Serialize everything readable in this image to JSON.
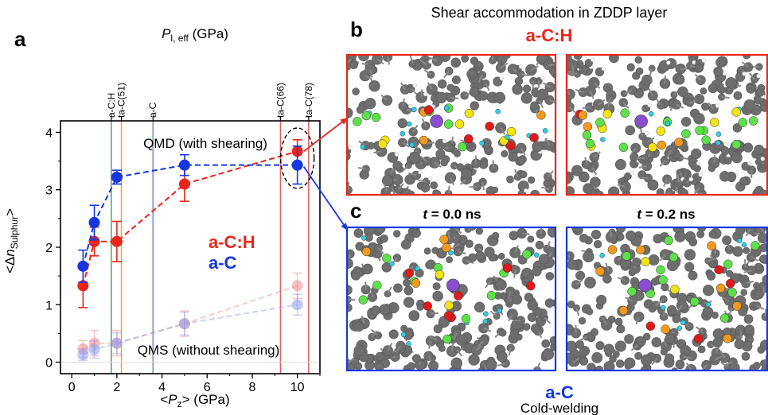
{
  "panels": {
    "a": "a",
    "b": "b",
    "c": "c"
  },
  "chart_data": {
    "type": "scatter",
    "xlabel": "<Pz> (GPa)",
    "xlabel_parts": {
      "pre": "<",
      "sym": "P",
      "sub": "z",
      "post": "> (GPa)"
    },
    "ylabel_parts": {
      "pre": "<Δ",
      "sym": "n",
      "sub": "Sulphur",
      "post": ">"
    },
    "top_axis_label": {
      "sym": "P",
      "sub": "l, eff",
      "post": " (GPa)"
    },
    "xlim": [
      -0.5,
      11
    ],
    "ylim": [
      -0.2,
      4.2
    ],
    "xticks": [
      "0",
      "2",
      "4",
      "6",
      "8",
      "10"
    ],
    "yticks": [
      "0",
      "1",
      "2",
      "3",
      "4"
    ],
    "top_markers": [
      {
        "label": "a-C:H",
        "x": 1.75,
        "color": "#5a9a68"
      },
      {
        "label": "ta-C(51)",
        "x": 2.2,
        "color": "#f0a030"
      },
      {
        "label": "a-C",
        "x": 3.6,
        "color": "#6f8fd0"
      },
      {
        "label": "ta-C(66)",
        "x": 9.25,
        "color": "#e06060"
      },
      {
        "label": "ta-C(78)",
        "x": 10.5,
        "color": "#e06060"
      }
    ],
    "series": [
      {
        "name": "a-C:H",
        "group": "QMD (with shearing)",
        "color": "#e8261c",
        "faded": false,
        "x": [
          0.5,
          1.0,
          2.0,
          5.0,
          10.0
        ],
        "y": [
          1.33,
          2.1,
          2.1,
          3.1,
          3.67
        ],
        "err": [
          0.38,
          0.25,
          0.35,
          0.3,
          0.2
        ]
      },
      {
        "name": "a-C",
        "group": "QMD (with shearing)",
        "color": "#1637e0",
        "faded": false,
        "x": [
          0.5,
          1.0,
          2.0,
          5.0,
          10.0
        ],
        "y": [
          1.67,
          2.43,
          3.22,
          3.43,
          3.43
        ],
        "err": [
          0.28,
          0.3,
          0.12,
          0.18,
          0.33
        ]
      },
      {
        "name": "a-C:H",
        "group": "QMS (without shearing)",
        "color": "#f08c8c",
        "faded": true,
        "x": [
          0.5,
          1.0,
          2.0,
          5.0,
          10.0
        ],
        "y": [
          0.23,
          0.33,
          0.33,
          0.67,
          1.33
        ],
        "err": [
          0.15,
          0.22,
          0.22,
          0.22,
          0.22
        ]
      },
      {
        "name": "a-C",
        "group": "QMS (without shearing)",
        "color": "#8c9cf0",
        "faded": true,
        "x": [
          0.5,
          1.0,
          2.0,
          5.0,
          10.0
        ],
        "y": [
          0.13,
          0.22,
          0.33,
          0.67,
          1.0
        ],
        "err": [
          0.1,
          0.15,
          0.18,
          0.2,
          0.18
        ]
      }
    ],
    "annotations": {
      "qmd": "QMD (with shearing)",
      "qms": "QMS (without shearing)",
      "legend_ach": "a-C:H",
      "legend_ac": "a-C",
      "legend_ach_color": "#e8261c",
      "legend_ac_color": "#1637e0"
    }
  },
  "right": {
    "title": "Shear accommodation in ZDDP layer",
    "top_material": "a-C:H",
    "top_material_color": "#e8261c",
    "bottom_material": "a-C",
    "bottom_material_color": "#1637e0",
    "bottom_caption": "Cold-welding",
    "time_left": {
      "sym": "t",
      "rest": " = 0.0 ns"
    },
    "time_right": {
      "sym": "t",
      "rest": " = 0.2 ns"
    },
    "frame_colors": {
      "top": "#e8261c",
      "bottom": "#1637e0"
    },
    "atom_colors": {
      "carbon": "#6e6e6e",
      "hydrogen": "#f4f4f4",
      "sulphur": "#f2e412",
      "oxygen": "#e21a1a",
      "phosphorus": "#8a4fcf",
      "zinc": "#f39a1e",
      "ethyl_carbon": "#5ee04a",
      "ethyl_hydrogen": "#2ad0e8"
    }
  }
}
